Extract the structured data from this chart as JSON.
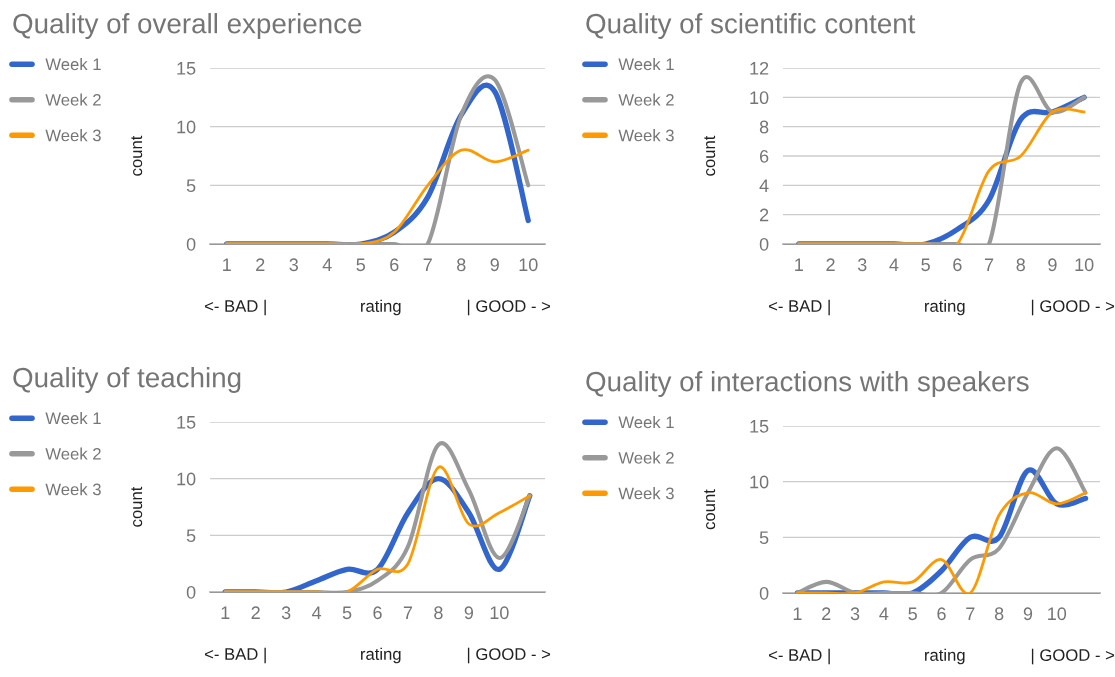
{
  "chart_data": [
    {
      "type": "line",
      "title": "Quality of overall experience",
      "xlabel": "<- BAD |                    rating              | GOOD - >",
      "ylabel": "count",
      "categories": [
        "1",
        "2",
        "3",
        "4",
        "5",
        "6",
        "7",
        "8",
        "9",
        "10"
      ],
      "ylim": [
        0,
        15
      ],
      "yticks": [
        0,
        5,
        10,
        15
      ],
      "grid": "y",
      "legend": "left",
      "series": [
        {
          "name": "Week 1",
          "color": "#3366cc",
          "values": [
            0,
            0,
            0,
            0,
            0,
            1,
            4,
            11,
            13,
            2
          ]
        },
        {
          "name": "Week 2",
          "color": "#999999",
          "values": [
            0,
            0,
            0,
            0,
            0,
            0,
            0,
            11,
            14,
            5
          ]
        },
        {
          "name": "Week 3",
          "color": "#ff9900",
          "values": [
            0,
            0,
            0,
            0,
            0,
            1,
            5,
            8,
            7,
            8
          ]
        }
      ]
    },
    {
      "type": "line",
      "title": "Quality of scientific content",
      "xlabel": "<- BAD |                    rating              | GOOD - >",
      "ylabel": "count",
      "categories": [
        "1",
        "2",
        "3",
        "4",
        "5",
        "6",
        "7",
        "8",
        "9",
        "10"
      ],
      "ylim": [
        0,
        12
      ],
      "yticks": [
        0,
        2,
        4,
        6,
        8,
        10,
        12
      ],
      "grid": "y",
      "legend": "top left",
      "series": [
        {
          "name": "Week 1",
          "color": "#3366cc",
          "values": [
            0,
            0,
            0,
            0,
            0,
            1,
            3,
            8.5,
            9,
            10
          ]
        },
        {
          "name": "Week 2",
          "color": "#999999",
          "values": [
            0,
            0,
            0,
            0,
            0,
            0,
            0,
            11,
            9,
            10
          ]
        },
        {
          "name": "Week 3",
          "color": "#ff9900",
          "values": [
            0,
            0,
            0,
            0,
            0,
            0,
            5,
            6,
            9,
            9
          ]
        }
      ]
    },
    {
      "type": "line",
      "title": "Quality of teaching",
      "xlabel": "<- BAD |                    rating              | GOOD - >",
      "ylabel": "count",
      "categories": [
        "1",
        "2",
        "3",
        "4",
        "5",
        "6",
        "7",
        "8",
        "9",
        "10",
        null
      ],
      "ylim": [
        0,
        15
      ],
      "yticks": [
        0,
        5,
        10,
        15
      ],
      "grid": "y",
      "legend": "left",
      "series": [
        {
          "name": "Week 1",
          "color": "#3366cc",
          "values": [
            0,
            0,
            0,
            1,
            2,
            2,
            7,
            10,
            7,
            2,
            8.5
          ]
        },
        {
          "name": "Week 2",
          "color": "#999999",
          "values": [
            0,
            0,
            0,
            0,
            0,
            1,
            4,
            13,
            9,
            3,
            8.5
          ]
        },
        {
          "name": "Week 3",
          "color": "#ff9900",
          "values": [
            0,
            0,
            0,
            0,
            0,
            2,
            2.5,
            11,
            6,
            7,
            8.5
          ]
        }
      ]
    },
    {
      "type": "line",
      "title": "Quality of interactions with speakers",
      "xlabel": "<- BAD |                    rating              | GOOD - >",
      "ylabel": "count",
      "categories": [
        "1",
        "2",
        "3",
        "4",
        "5",
        "6",
        "7",
        "8",
        "9",
        "10",
        null
      ],
      "ylim": [
        0,
        15
      ],
      "yticks": [
        0,
        5,
        10,
        15
      ],
      "grid": "y",
      "legend": "top left",
      "series": [
        {
          "name": "Week 1",
          "color": "#3366cc",
          "values": [
            0,
            0,
            0,
            0,
            0,
            2,
            5,
            5,
            11,
            8,
            8.5
          ]
        },
        {
          "name": "Week 2",
          "color": "#999999",
          "values": [
            0,
            1,
            0,
            0,
            0,
            0,
            3,
            4,
            9,
            13,
            9
          ]
        },
        {
          "name": "Week 3",
          "color": "#ff9900",
          "values": [
            0,
            0,
            0,
            1,
            1,
            3,
            0,
            7,
            9,
            8,
            9
          ]
        }
      ]
    }
  ]
}
